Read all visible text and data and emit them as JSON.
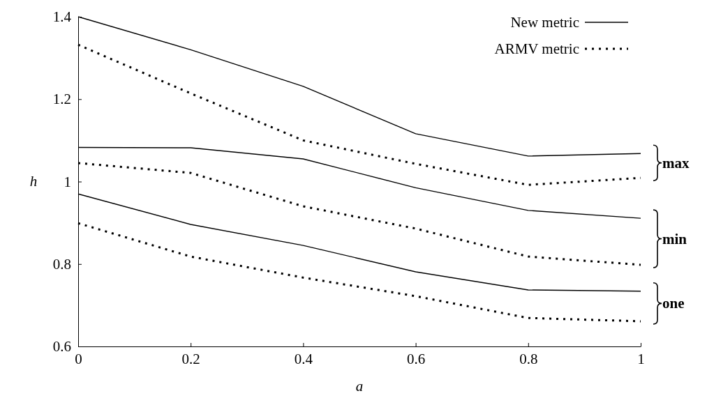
{
  "chart_data": {
    "type": "line",
    "xlabel": "a",
    "ylabel": "h",
    "x": [
      0,
      0.2,
      0.4,
      0.6,
      0.8,
      1
    ],
    "xlim": [
      0,
      1
    ],
    "xticks": [
      0,
      0.2,
      0.4,
      0.6,
      0.8,
      1
    ],
    "ylim": [
      0.6,
      1.4
    ],
    "yticks": [
      0.6,
      0.8,
      {
        "value": 1,
        "label": "1"
      },
      1.2,
      1.4
    ],
    "legend": "top right",
    "marker": "none",
    "grid": false,
    "series": [
      {
        "name": "New metric",
        "color": "#000000",
        "line_style": "solid",
        "values": [
          1.4,
          1.32,
          1.231,
          1.116,
          1.062,
          1.068
        ]
      },
      {
        "name": "ARMV metric",
        "color": "#000000",
        "line_style": "dotted",
        "values": [
          1.332,
          1.214,
          1.1,
          1.043,
          0.992,
          1.009
        ]
      },
      {
        "color": "#000000",
        "line_style": "solid",
        "values": [
          1.083,
          1.082,
          1.055,
          0.985,
          0.93,
          0.911
        ]
      },
      {
        "color": "#000000",
        "line_style": "dotted",
        "values": [
          1.045,
          1.021,
          0.94,
          0.886,
          0.818,
          0.798
        ]
      },
      {
        "color": "#000000",
        "line_style": "solid",
        "values": [
          0.97,
          0.896,
          0.845,
          0.781,
          0.737,
          0.734
        ]
      },
      {
        "color": "#000000",
        "line_style": "dotted",
        "values": [
          0.899,
          0.818,
          0.767,
          0.722,
          0.669,
          0.661
        ]
      }
    ],
    "annotations": [
      "max",
      "min",
      "one"
    ]
  }
}
